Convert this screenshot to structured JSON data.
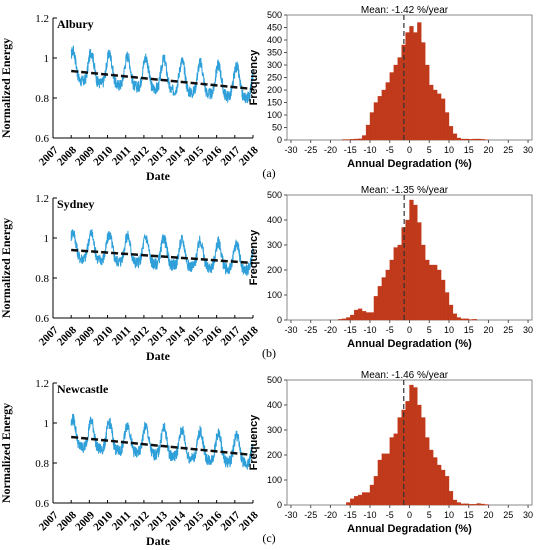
{
  "panel_labels": [
    "(a)",
    "(b)",
    "(c)"
  ],
  "colors": {
    "energy_line": "#2E9FD8",
    "trend_line": "#111111",
    "histogram_bar": "#C0391B",
    "mean_line": "#333333"
  },
  "chart_data": [
    {
      "type": "line",
      "title": "Albury",
      "xlabel": "Date",
      "ylabel": "Normalized Energy",
      "xticks": [
        "2007",
        "2008",
        "2009",
        "2010",
        "2011",
        "2012",
        "2013",
        "2014",
        "2015",
        "2016",
        "2017",
        "2018"
      ],
      "yticks": [
        "0.6",
        "0.8",
        "1",
        "1.2"
      ],
      "xlim": [
        2007,
        2018
      ],
      "ylim": [
        0.6,
        1.2
      ],
      "series": [
        {
          "x_range": [
            2008.0,
            2018.0
          ],
          "seasonal_peak": 1.05,
          "seasonal_trough": 0.84,
          "peak_phase": 0.1
        },
        {
          "trend_start": [
            2008.0,
            0.935
          ],
          "trend_end": [
            2018.0,
            0.845
          ]
        }
      ]
    },
    {
      "type": "bar",
      "title": "Mean: -1.42 %/year",
      "xlabel": "Annual Degradation (%)",
      "ylabel": "Frequency",
      "xticks": [
        "-30",
        "-25",
        "-20",
        "-15",
        "-10",
        "-5",
        "0",
        "5",
        "10",
        "15",
        "20",
        "25",
        "30"
      ],
      "yticks": [
        "0",
        "50",
        "100",
        "150",
        "200",
        "250",
        "300",
        "350",
        "400",
        "450",
        "500"
      ],
      "xlim": [
        -31,
        31
      ],
      "ylim": [
        0,
        500
      ],
      "mean": -1.42,
      "bin_width": 1,
      "bin_start": -30,
      "values": [
        0,
        0,
        0,
        0,
        0,
        0,
        0,
        0,
        0,
        0,
        0,
        0,
        0,
        2,
        2,
        3,
        4,
        5,
        18,
        60,
        110,
        150,
        175,
        200,
        230,
        270,
        300,
        330,
        380,
        430,
        455,
        430,
        470,
        390,
        300,
        220,
        200,
        185,
        165,
        110,
        55,
        25,
        8,
        4,
        4,
        3,
        4,
        4,
        3,
        1,
        0,
        0,
        0,
        0,
        0,
        0,
        0,
        0,
        0,
        0
      ]
    },
    {
      "type": "line",
      "title": "Sydney",
      "xlabel": "Date",
      "ylabel": "Normalized Energy",
      "xticks": [
        "2007",
        "2008",
        "2009",
        "2010",
        "2011",
        "2012",
        "2013",
        "2014",
        "2015",
        "2016",
        "2017",
        "2018"
      ],
      "yticks": [
        "0.6",
        "0.8",
        "1",
        "1.2"
      ],
      "xlim": [
        2007,
        2018
      ],
      "ylim": [
        0.6,
        1.2
      ],
      "series": [
        {
          "x_range": [
            2008.0,
            2018.0
          ],
          "seasonal_peak": 1.04,
          "seasonal_trough": 0.86,
          "peak_phase": 0.1
        },
        {
          "trend_start": [
            2008.0,
            0.94
          ],
          "trend_end": [
            2018.0,
            0.875
          ]
        }
      ]
    },
    {
      "type": "bar",
      "title": "Mean: -1.35 %/year",
      "xlabel": "Annual Degradation (%)",
      "ylabel": "Frequency",
      "xticks": [
        "-30",
        "-25",
        "-20",
        "-15",
        "-10",
        "-5",
        "0",
        "5",
        "10",
        "15",
        "20",
        "25",
        "30"
      ],
      "yticks": [
        "0",
        "100",
        "200",
        "300",
        "400",
        "500"
      ],
      "xlim": [
        -31,
        31
      ],
      "ylim": [
        0,
        500
      ],
      "mean": -1.35,
      "bin_width": 1,
      "bin_start": -30,
      "values": [
        0,
        0,
        0,
        0,
        0,
        0,
        0,
        0,
        0,
        0,
        0,
        0,
        3,
        5,
        10,
        20,
        40,
        45,
        35,
        30,
        30,
        95,
        135,
        170,
        200,
        240,
        290,
        300,
        370,
        400,
        480,
        460,
        390,
        300,
        240,
        220,
        220,
        200,
        160,
        110,
        60,
        25,
        10,
        5,
        5,
        2,
        3,
        0,
        0,
        0,
        0,
        0,
        0,
        0,
        0,
        0,
        0,
        0,
        0,
        0
      ]
    },
    {
      "type": "line",
      "title": "Newcastle",
      "xlabel": "Date",
      "ylabel": "Normalized Energy",
      "xticks": [
        "2007",
        "2008",
        "2009",
        "2010",
        "2011",
        "2012",
        "2013",
        "2014",
        "2015",
        "2016",
        "2017",
        "2018"
      ],
      "yticks": [
        "0.6",
        "0.8",
        "1",
        "1.2"
      ],
      "xlim": [
        2007,
        2018
      ],
      "ylim": [
        0.6,
        1.2
      ],
      "series": [
        {
          "x_range": [
            2008.0,
            2018.0
          ],
          "seasonal_peak": 1.03,
          "seasonal_trough": 0.84,
          "peak_phase": 0.1
        },
        {
          "trend_start": [
            2008.0,
            0.93
          ],
          "trend_end": [
            2018.0,
            0.84
          ]
        }
      ]
    },
    {
      "type": "bar",
      "title": "Mean: -1.46 %/year",
      "xlabel": "Annual Degradation (%)",
      "ylabel": "Frequency",
      "xticks": [
        "-30",
        "-25",
        "-20",
        "-15",
        "-10",
        "-5",
        "0",
        "5",
        "10",
        "15",
        "20",
        "25",
        "30"
      ],
      "yticks": [
        "0",
        "100",
        "200",
        "300",
        "400",
        "500"
      ],
      "xlim": [
        -31,
        31
      ],
      "ylim": [
        0,
        500
      ],
      "mean": -1.46,
      "bin_width": 1,
      "bin_start": -30,
      "values": [
        0,
        0,
        0,
        0,
        0,
        0,
        0,
        0,
        0,
        0,
        0,
        0,
        0,
        0,
        10,
        25,
        35,
        40,
        50,
        50,
        80,
        115,
        180,
        205,
        205,
        270,
        285,
        350,
        380,
        415,
        480,
        470,
        400,
        350,
        270,
        220,
        190,
        160,
        140,
        115,
        55,
        20,
        10,
        5,
        5,
        3,
        3,
        6,
        4,
        2,
        0,
        0,
        0,
        0,
        0,
        0,
        0,
        0,
        0,
        0
      ]
    }
  ]
}
